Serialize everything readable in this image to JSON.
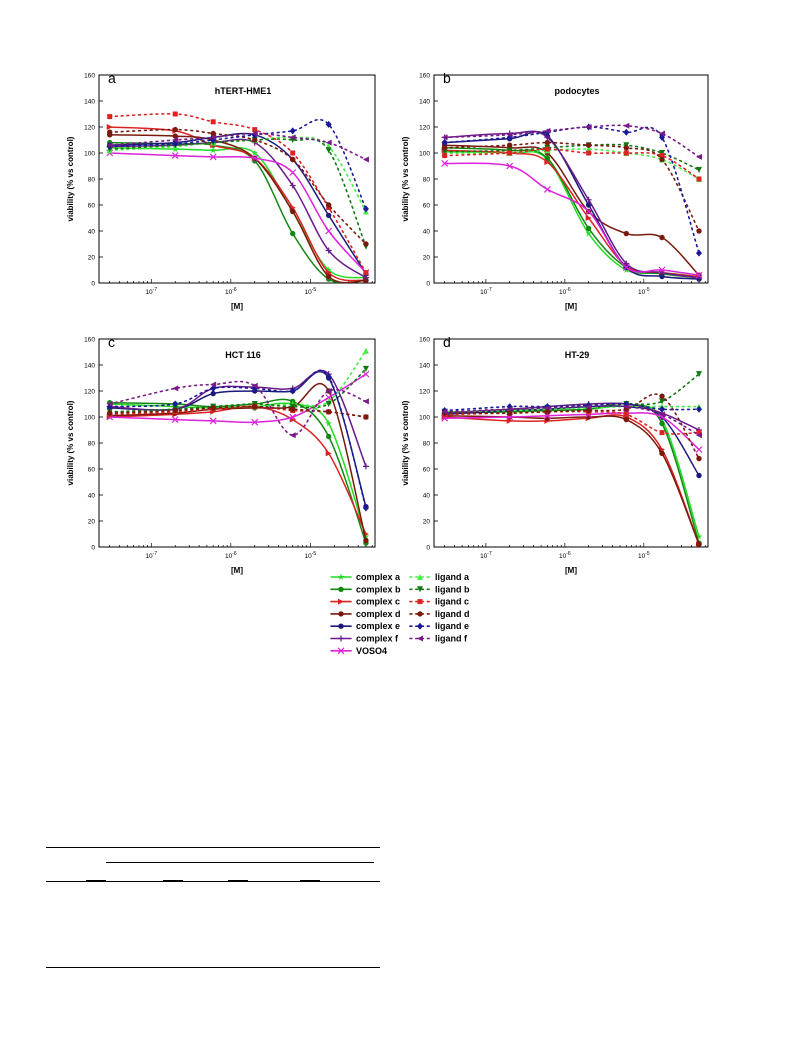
{
  "colors": {
    "complex_a": "#22dd22",
    "complex_b": "#118811",
    "complex_c": "#dd2222",
    "complex_d": "#7a1a0e",
    "complex_e": "#1a1a7a",
    "complex_f": "#6a1a8a",
    "VOSO4": "#dd22dd",
    "ligand_a": "#44ee44",
    "ligand_b": "#117711",
    "ligand_c": "#dd2222",
    "ligand_d": "#7a1a0e",
    "ligand_e": "#1a1a99",
    "ligand_f": "#7a1a8a"
  },
  "legend": {
    "complex_a": "complex a",
    "complex_b": "complex b",
    "complex_c": "complex c",
    "complex_d": "complex d",
    "complex_e": "complex e",
    "complex_f": "complex f",
    "VOSO4": "VOSO4",
    "ligand_a": "ligand a",
    "ligand_b": "ligand b",
    "ligand_c": "ligand c",
    "ligand_d": "ligand d",
    "ligand_e": "ligand e",
    "ligand_f": "ligand f"
  },
  "chart_data": [
    {
      "type": "scatter",
      "letter": "a",
      "title": "hTERT-HME1",
      "xlabel": "[M]",
      "ylabel": "viability (% vs control)",
      "xscale": "log",
      "xlim": [
        2.2e-08,
        6.5e-05
      ],
      "ylim": [
        0,
        160
      ],
      "xtick_labels": [
        "10-7",
        "10-6",
        "10-5"
      ],
      "ytick_labels": [
        "0",
        "20",
        "40",
        "60",
        "80",
        "100",
        "120",
        "140",
        "160"
      ],
      "x": [
        3e-08,
        2e-07,
        6e-07,
        2e-06,
        6e-06,
        1.7e-05,
        5e-05
      ],
      "series": [
        {
          "name": "complex a",
          "values": [
            104,
            103,
            102,
            100,
            55,
            10,
            4
          ]
        },
        {
          "name": "complex b",
          "values": [
            108,
            107,
            106,
            94,
            38,
            3,
            2
          ]
        },
        {
          "name": "complex c",
          "values": [
            120,
            117,
            106,
            96,
            58,
            8,
            2
          ]
        },
        {
          "name": "complex d",
          "values": [
            114,
            113,
            110,
            96,
            55,
            5,
            2
          ]
        },
        {
          "name": "complex e",
          "values": [
            106,
            108,
            112,
            114,
            95,
            52,
            7
          ]
        },
        {
          "name": "complex f",
          "values": [
            105,
            106,
            108,
            108,
            75,
            25,
            4
          ]
        },
        {
          "name": "VOSO4",
          "values": [
            100,
            98,
            97,
            96,
            85,
            40,
            8
          ]
        },
        {
          "name": "ligand a",
          "values": [
            102,
            105,
            108,
            110,
            112,
            105,
            55
          ]
        },
        {
          "name": "ligand b",
          "values": [
            103,
            106,
            108,
            110,
            110,
            102,
            28
          ]
        },
        {
          "name": "ligand c",
          "values": [
            128,
            130,
            124,
            118,
            100,
            58,
            8
          ]
        },
        {
          "name": "ligand d",
          "values": [
            116,
            118,
            115,
            110,
            95,
            60,
            30
          ]
        },
        {
          "name": "ligand e",
          "values": [
            105,
            107,
            110,
            114,
            117,
            122,
            57
          ]
        },
        {
          "name": "ligand f",
          "values": [
            106,
            110,
            112,
            115,
            112,
            108,
            95
          ]
        }
      ]
    },
    {
      "type": "scatter",
      "letter": "b",
      "title": "podocytes",
      "xlabel": "[M]",
      "ylabel": "viability (% vs control)",
      "xscale": "log",
      "xlim": [
        2.2e-08,
        6.5e-05
      ],
      "ylim": [
        0,
        160
      ],
      "xtick_labels": [
        "10-7",
        "10-6",
        "10-5"
      ],
      "ytick_labels": [
        "0",
        "20",
        "40",
        "60",
        "80",
        "100",
        "120",
        "140",
        "160"
      ],
      "x": [
        3e-08,
        2e-07,
        6e-07,
        2e-06,
        6e-06,
        1.7e-05,
        5e-05
      ],
      "series": [
        {
          "name": "complex a",
          "values": [
            101,
            100,
            95,
            38,
            10,
            8,
            5
          ]
        },
        {
          "name": "complex b",
          "values": [
            104,
            102,
            96,
            42,
            12,
            7,
            4
          ]
        },
        {
          "name": "complex c",
          "values": [
            102,
            100,
            93,
            50,
            13,
            8,
            5
          ]
        },
        {
          "name": "complex d",
          "values": [
            106,
            104,
            100,
            55,
            38,
            35,
            6
          ]
        },
        {
          "name": "complex e",
          "values": [
            108,
            111,
            113,
            60,
            12,
            5,
            3
          ]
        },
        {
          "name": "complex f",
          "values": [
            112,
            115,
            112,
            64,
            15,
            8,
            4
          ]
        },
        {
          "name": "VOSO4",
          "values": [
            92,
            90,
            72,
            55,
            12,
            10,
            6
          ]
        },
        {
          "name": "ligand a",
          "values": [
            100,
            100,
            102,
            103,
            100,
            95,
            80
          ]
        },
        {
          "name": "ligand b",
          "values": [
            101,
            102,
            104,
            106,
            106,
            100,
            87
          ]
        },
        {
          "name": "ligand c",
          "values": [
            98,
            100,
            103,
            100,
            100,
            98,
            80
          ]
        },
        {
          "name": "ligand d",
          "values": [
            104,
            106,
            108,
            106,
            104,
            95,
            40
          ]
        },
        {
          "name": "ligand e",
          "values": [
            108,
            112,
            116,
            120,
            116,
            112,
            23
          ]
        },
        {
          "name": "ligand f",
          "values": [
            112,
            114,
            117,
            120,
            121,
            115,
            97
          ]
        }
      ]
    },
    {
      "type": "scatter",
      "letter": "c",
      "title": "HCT 116",
      "xlabel": "[M]",
      "ylabel": "viability (% vs control)",
      "xscale": "log",
      "xlim": [
        2.2e-08,
        6.5e-05
      ],
      "ylim": [
        0,
        160
      ],
      "xtick_labels": [
        "10-7",
        "10-6",
        "10-5"
      ],
      "ytick_labels": [
        "0",
        "20",
        "40",
        "60",
        "80",
        "100",
        "120",
        "140",
        "160"
      ],
      "x": [
        3e-08,
        2e-07,
        6e-07,
        2e-06,
        6e-06,
        1.7e-05,
        5e-05
      ],
      "series": [
        {
          "name": "complex a",
          "values": [
            110,
            108,
            107,
            108,
            110,
            95,
            8
          ]
        },
        {
          "name": "complex b",
          "values": [
            111,
            110,
            108,
            110,
            112,
            85,
            3
          ]
        },
        {
          "name": "complex c",
          "values": [
            100,
            102,
            104,
            108,
            98,
            72,
            10
          ]
        },
        {
          "name": "complex d",
          "values": [
            101,
            103,
            106,
            107,
            108,
            120,
            5
          ]
        },
        {
          "name": "complex e",
          "values": [
            107,
            106,
            118,
            120,
            120,
            130,
            31
          ]
        },
        {
          "name": "complex f",
          "values": [
            108,
            106,
            122,
            123,
            122,
            133,
            62
          ]
        },
        {
          "name": "VOSO4",
          "values": [
            100,
            98,
            97,
            96,
            100,
            115,
            133
          ]
        },
        {
          "name": "ligand a",
          "values": [
            103,
            105,
            107,
            108,
            110,
            112,
            151
          ]
        },
        {
          "name": "ligand b",
          "values": [
            104,
            106,
            108,
            110,
            108,
            110,
            137
          ]
        },
        {
          "name": "ligand c",
          "values": [
            102,
            104,
            106,
            108,
            105,
            104,
            100
          ]
        },
        {
          "name": "ligand d",
          "values": [
            103,
            105,
            107,
            108,
            106,
            104,
            100
          ]
        },
        {
          "name": "ligand e",
          "values": [
            108,
            110,
            122,
            122,
            120,
            131,
            30
          ]
        },
        {
          "name": "ligand f",
          "values": [
            110,
            122,
            125,
            124,
            86,
            120,
            112
          ]
        }
      ]
    },
    {
      "type": "scatter",
      "letter": "d",
      "title": "HT-29",
      "xlabel": "[M]",
      "ylabel": "viability (% vs control)",
      "xscale": "log",
      "xlim": [
        2.2e-08,
        6.5e-05
      ],
      "ylim": [
        0,
        160
      ],
      "xtick_labels": [
        "10-7",
        "10-6",
        "10-5"
      ],
      "ytick_labels": [
        "0",
        "20",
        "40",
        "60",
        "80",
        "100",
        "120",
        "140",
        "160"
      ],
      "x": [
        3e-08,
        2e-07,
        6e-07,
        2e-06,
        6e-06,
        1.7e-05,
        5e-05
      ],
      "series": [
        {
          "name": "complex a",
          "values": [
            104,
            104,
            105,
            106,
            108,
            98,
            8
          ]
        },
        {
          "name": "complex b",
          "values": [
            103,
            104,
            105,
            106,
            110,
            95,
            3
          ]
        },
        {
          "name": "complex c",
          "values": [
            100,
            97,
            97,
            99,
            100,
            75,
            2
          ]
        },
        {
          "name": "complex d",
          "values": [
            101,
            100,
            99,
            100,
            98,
            72,
            2
          ]
        },
        {
          "name": "complex e",
          "values": [
            102,
            105,
            106,
            108,
            108,
            100,
            55
          ]
        },
        {
          "name": "complex f",
          "values": [
            103,
            106,
            108,
            110,
            110,
            103,
            90
          ]
        },
        {
          "name": "VOSO4",
          "values": [
            99,
            100,
            101,
            102,
            103,
            100,
            75
          ]
        },
        {
          "name": "ligand a",
          "values": [
            104,
            105,
            106,
            107,
            108,
            108,
            108
          ]
        },
        {
          "name": "ligand b",
          "values": [
            104,
            106,
            107,
            108,
            110,
            112,
            133
          ]
        },
        {
          "name": "ligand c",
          "values": [
            102,
            103,
            104,
            104,
            102,
            88,
            88
          ]
        },
        {
          "name": "ligand d",
          "values": [
            103,
            103,
            104,
            105,
            106,
            116,
            68
          ]
        },
        {
          "name": "ligand e",
          "values": [
            105,
            108,
            108,
            109,
            110,
            106,
            106
          ]
        },
        {
          "name": "ligand f",
          "values": [
            104,
            106,
            107,
            108,
            108,
            102,
            86
          ]
        }
      ]
    }
  ]
}
